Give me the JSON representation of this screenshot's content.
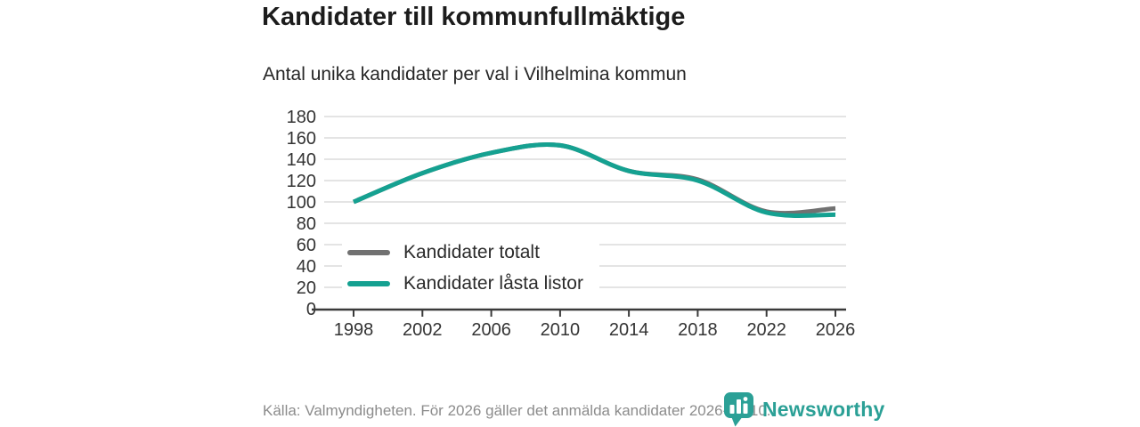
{
  "header": {
    "title": "Kandidater till kommunfullmäktige",
    "subtitle": "Antal unika kandidater per val i Vilhelmina kommun"
  },
  "chart_data": {
    "type": "line",
    "title": "Kandidater till kommunfullmäktige",
    "subtitle": "Antal unika kandidater per val i Vilhelmina kommun",
    "x": [
      1998,
      2002,
      2006,
      2010,
      2014,
      2018,
      2022,
      2026
    ],
    "xticks": [
      "1998",
      "2002",
      "2006",
      "2010",
      "2014",
      "2018",
      "2022",
      "2026"
    ],
    "yticks": [
      0,
      20,
      40,
      60,
      80,
      100,
      120,
      140,
      160,
      180
    ],
    "ylim": [
      0,
      180
    ],
    "grid": true,
    "legend_position": "inside-bottom-left",
    "series": [
      {
        "name": "Kandidater totalt",
        "color": "#717171",
        "values": [
          100,
          127,
          146,
          153,
          129,
          121,
          91,
          94
        ]
      },
      {
        "name": "Kandidater låsta listor",
        "color": "#15a191",
        "values": [
          100,
          127,
          146,
          153,
          129,
          120,
          90,
          88
        ]
      }
    ]
  },
  "footer": {
    "source": "Källa: Valmyndigheten. För 2026 gäller det anmälda kandidater 2026-04-10.",
    "brand": "Newsworthy"
  },
  "colors": {
    "accent_teal": "#15a191",
    "series_gray": "#717171",
    "gridline": "#e4e4e4",
    "axis": "#3a3a3a",
    "tick_text": "#333333",
    "brand_teal": "#2ba096"
  }
}
